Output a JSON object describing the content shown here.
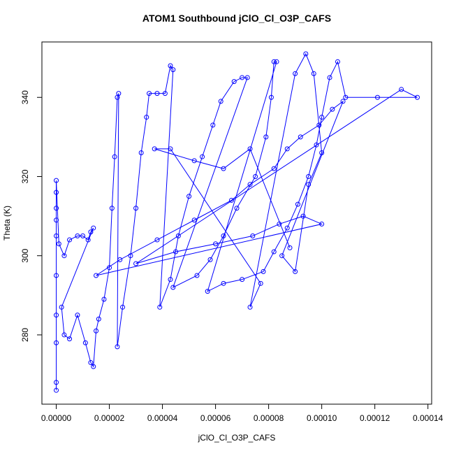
{
  "chart_data": {
    "type": "line-scatter",
    "title": "ATOM1 Southbound jClO_Cl_O3P_CAFS",
    "x_label": "jClO_Cl_O3P_CAFS",
    "y_label": "Theta (K)",
    "color": "#0000ff",
    "xlim": [
      -5.4e-06,
      0.0001414
    ],
    "ylim": [
      262.5,
      354
    ],
    "xticks": [
      {
        "value": 0,
        "label": "0.00000"
      },
      {
        "value": 2e-05,
        "label": "0.00002"
      },
      {
        "value": 4e-05,
        "label": "0.00004"
      },
      {
        "value": 6e-05,
        "label": "0.00006"
      },
      {
        "value": 8e-05,
        "label": "0.00008"
      },
      {
        "value": 0.0001,
        "label": "0.00010"
      },
      {
        "value": 0.00012,
        "label": "0.00012"
      },
      {
        "value": 0.00014,
        "label": "0.00014"
      }
    ],
    "yticks": [
      280,
      300,
      320,
      340
    ],
    "x": [
      0,
      0,
      0,
      0,
      0,
      0,
      0,
      0,
      0,
      0,
      1e-06,
      3e-06,
      5e-06,
      8e-06,
      1e-05,
      1.2e-05,
      1.3e-05,
      1.4e-05,
      2e-06,
      3e-06,
      5e-06,
      8e-06,
      1.1e-05,
      1.3e-05,
      1.4e-05,
      1.5e-05,
      1.6e-05,
      1.8e-05,
      2e-05,
      2.1e-05,
      2.2e-05,
      2.3e-05,
      2.35e-05,
      2.3e-05,
      2.5e-05,
      2.8e-05,
      3e-05,
      3.2e-05,
      3.4e-05,
      3.5e-05,
      3.8e-05,
      4.1e-05,
      4.3e-05,
      4.4e-05,
      3.9e-05,
      4.3e-05,
      4.6e-05,
      5e-05,
      5.5e-05,
      5.9e-05,
      6.2e-05,
      6.7e-05,
      7e-05,
      7.2e-05,
      4.4e-05,
      5.3e-05,
      5.8e-05,
      6.3e-05,
      6.8e-05,
      7.5e-05,
      7.9e-05,
      8.1e-05,
      8.2e-05,
      8.3e-05,
      5.7e-05,
      6.3e-05,
      7e-05,
      7.8e-05,
      8.2e-05,
      8.7e-05,
      9.1e-05,
      9.5e-05,
      9.8e-05,
      0.0001,
      0.000103,
      0.000106,
      0.000109,
      0.000121,
      0.000136,
      0.00013,
      3e-05,
      4.5e-05,
      6e-05,
      7.4e-05,
      8.4e-05,
      9.3e-05,
      0.0001,
      1.5e-05,
      2.4e-05,
      3.8e-05,
      5.2e-05,
      6.6e-05,
      7.3e-05,
      8.2e-05,
      8.7e-05,
      9.2e-05,
      9.9e-05,
      0.000104,
      0.000108,
      8.5e-05,
      9e-05,
      9.5e-05,
      0.0001,
      9.7e-05,
      9.4e-05,
      9e-05,
      7.3e-05,
      7.7e-05,
      4.3e-05,
      3.7e-05,
      5.2e-05,
      6.3e-05,
      7.3e-05,
      8.8e-05
    ],
    "values": [
      266,
      268,
      278,
      285,
      295,
      305,
      309,
      312,
      316,
      319,
      303,
      300,
      304,
      305,
      305,
      304,
      306,
      307,
      287,
      280,
      279,
      285,
      278,
      273,
      272,
      281,
      284,
      289,
      297,
      312,
      325,
      340,
      341,
      277,
      287,
      300,
      312,
      326,
      335,
      341,
      341,
      341,
      348,
      347,
      287,
      294,
      305,
      315,
      325,
      333,
      339,
      344,
      345,
      345,
      292,
      295,
      299,
      305,
      312,
      320,
      330,
      340,
      349,
      349,
      291,
      293,
      294,
      296,
      301,
      307,
      313,
      320,
      328,
      335,
      345,
      349,
      340,
      340,
      340,
      342,
      298,
      301,
      303,
      305,
      308,
      310,
      308,
      295,
      299,
      304,
      309,
      314,
      318,
      322,
      327,
      330,
      333,
      337,
      339,
      300,
      296,
      318,
      326,
      346,
      351,
      346,
      287,
      293,
      327,
      327,
      324,
      322,
      327,
      302
    ]
  }
}
